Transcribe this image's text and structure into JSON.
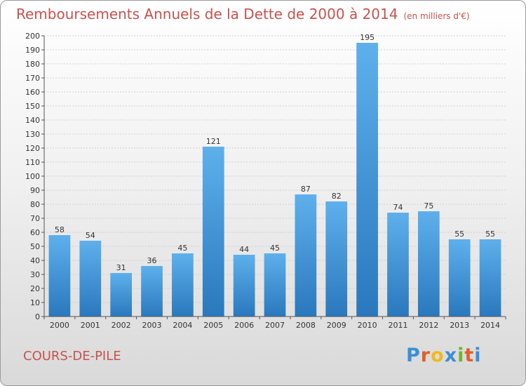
{
  "title": "Remboursements Annuels de la Dette de 2000 à 2014",
  "unit": "(en milliers d'€)",
  "location": "COURS-DE-PILE",
  "logo": {
    "letters": [
      "P",
      "r",
      "o",
      "x",
      "i",
      "t",
      "i"
    ],
    "colors": [
      "#3a8fd6",
      "#e0602a",
      "#f2b81c",
      "#3a8fd6",
      "#73b42a",
      "#e0602a",
      "#3a8fd6"
    ]
  },
  "chart_data": {
    "type": "bar",
    "categories": [
      "2000",
      "2001",
      "2002",
      "2003",
      "2004",
      "2005",
      "2006",
      "2007",
      "2008",
      "2009",
      "2010",
      "2011",
      "2012",
      "2013",
      "2014"
    ],
    "values": [
      58,
      54,
      31,
      36,
      45,
      121,
      44,
      45,
      87,
      82,
      195,
      74,
      75,
      55,
      55
    ],
    "title": "Remboursements Annuels de la Dette de 2000 à 2014",
    "xlabel": "",
    "ylabel": "",
    "ylim": [
      0,
      200
    ],
    "yticks": [
      0,
      10,
      20,
      30,
      40,
      50,
      60,
      70,
      80,
      90,
      100,
      110,
      120,
      130,
      140,
      150,
      160,
      170,
      180,
      190,
      200
    ],
    "grid": true,
    "bar_color": "#3a90d8"
  }
}
